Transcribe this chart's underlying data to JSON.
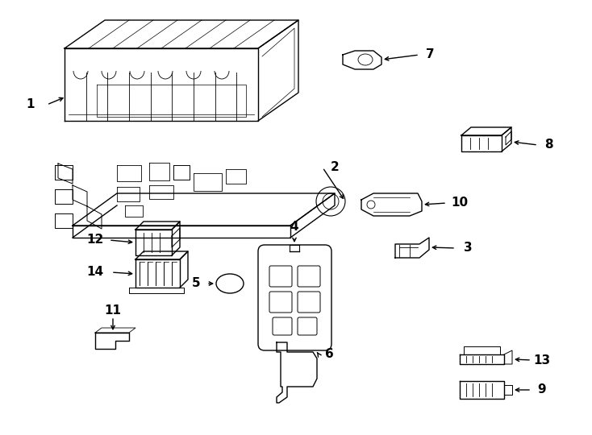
{
  "background_color": "#ffffff",
  "fig_width": 7.34,
  "fig_height": 5.4,
  "dpi": 100
}
